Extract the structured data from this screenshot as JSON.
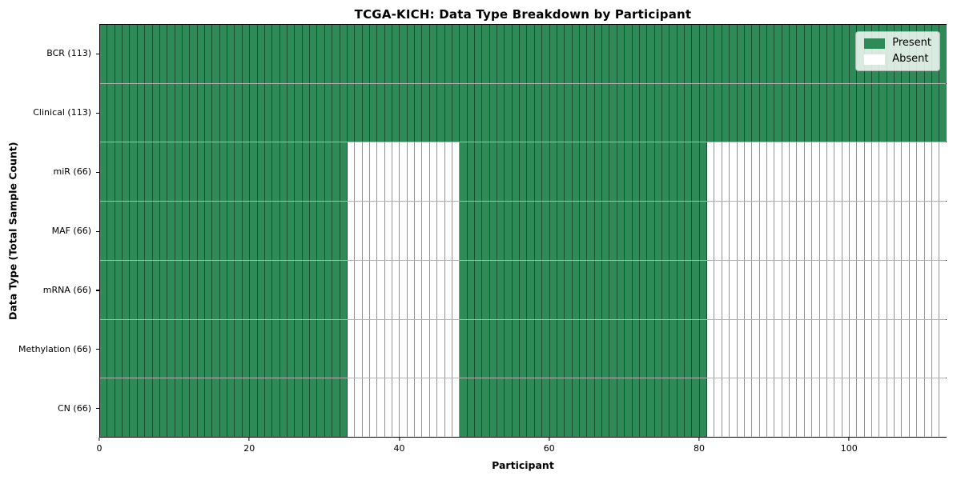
{
  "chart_data": {
    "type": "heatmap",
    "title": "TCGA-KICH: Data Type Breakdown by Participant",
    "xlabel": "Participant",
    "ylabel": "Data Type (Total Sample Count)",
    "x_max": 113,
    "x_ticks": [
      0,
      20,
      40,
      60,
      80,
      100
    ],
    "grid": false,
    "legend_position": "upper right",
    "colors": {
      "present": "#2e8b57",
      "absent": "#ffffff"
    },
    "legend": [
      {
        "label": "Present",
        "color": "#2e8b57"
      },
      {
        "label": "Absent",
        "color": "#ffffff"
      }
    ],
    "rows": [
      {
        "label": "BCR (113)",
        "data_type": "BCR",
        "total_samples": 113,
        "present_ranges": [
          [
            0,
            113
          ]
        ]
      },
      {
        "label": "Clinical (113)",
        "data_type": "Clinical",
        "total_samples": 113,
        "present_ranges": [
          [
            0,
            113
          ]
        ]
      },
      {
        "label": "miR (66)",
        "data_type": "miR",
        "total_samples": 66,
        "present_ranges": [
          [
            0,
            33
          ],
          [
            48,
            81
          ]
        ]
      },
      {
        "label": "MAF (66)",
        "data_type": "MAF",
        "total_samples": 66,
        "present_ranges": [
          [
            0,
            33
          ],
          [
            48,
            81
          ]
        ]
      },
      {
        "label": "mRNA (66)",
        "data_type": "mRNA",
        "total_samples": 66,
        "present_ranges": [
          [
            0,
            33
          ],
          [
            48,
            81
          ]
        ]
      },
      {
        "label": "Methylation (66)",
        "data_type": "Methylation",
        "total_samples": 66,
        "present_ranges": [
          [
            0,
            33
          ],
          [
            48,
            81
          ]
        ]
      },
      {
        "label": "CN (66)",
        "data_type": "CN",
        "total_samples": 66,
        "present_ranges": [
          [
            0,
            33
          ],
          [
            48,
            81
          ]
        ]
      }
    ]
  }
}
